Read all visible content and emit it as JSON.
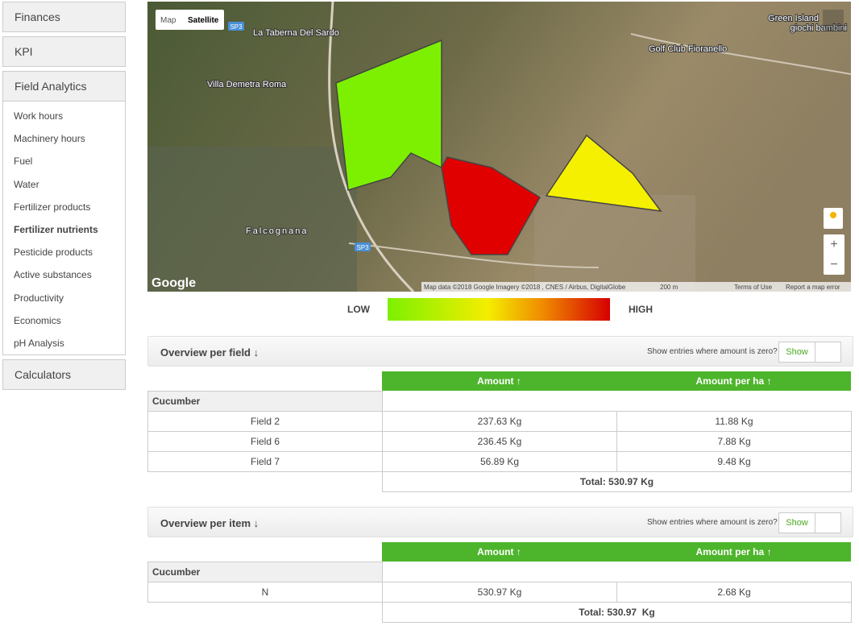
{
  "sidebar": {
    "finances": "Finances",
    "kpi": "KPI",
    "field_analytics": {
      "title": "Field Analytics",
      "items": [
        "Work hours",
        "Machinery hours",
        "Fuel",
        "Water",
        "Fertilizer products",
        "Fertilizer nutrients",
        "Pesticide products",
        "Active substances",
        "Productivity",
        "Economics",
        "pH Analysis"
      ]
    },
    "calculators": "Calculators"
  },
  "map": {
    "map_button": "Map",
    "satellite_button": "Satellite",
    "road_label": "SP3",
    "places": [
      "La Taberna Del Sardo",
      "Villa Demetra Roma",
      "Green Island",
      "giochi bambini",
      "Golf Club Fioranello",
      "Falcognana"
    ],
    "logo": "Google",
    "attribution": "Map data ©2018 Google Imagery ©2018 , CNES / Airbus, DigitalGlobe",
    "scale": "200 m",
    "terms": "Terms of Use",
    "report": "Report a map error",
    "zoom_in": "+",
    "zoom_out": "−"
  },
  "legend": {
    "low": "LOW",
    "high": "HIGH"
  },
  "panels": [
    {
      "title": "Overview per field ↓",
      "zero_prompt": "Show entries where amount is zero?",
      "show": "Show",
      "columns": [
        "Amount ↑",
        "Amount per ha ↑"
      ],
      "group": "Cucumber",
      "rows": [
        [
          "Field 2",
          "237.63 Kg",
          "11.88 Kg"
        ],
        [
          "Field 6",
          "236.45 Kg",
          "7.88 Kg"
        ],
        [
          "Field 7",
          "56.89 Kg",
          "9.48 Kg"
        ]
      ],
      "total": "Total: 530.97 Kg"
    },
    {
      "title": "Overview per item ↓",
      "zero_prompt": "Show entries where amount is zero?",
      "show": "Show",
      "columns": [
        "Amount ↑",
        "Amount per ha ↑"
      ],
      "group": "Cucumber",
      "rows": [
        [
          "N",
          "530.97 Kg",
          "2.68 Kg"
        ]
      ],
      "total": "Total: 530.97  Kg"
    }
  ]
}
